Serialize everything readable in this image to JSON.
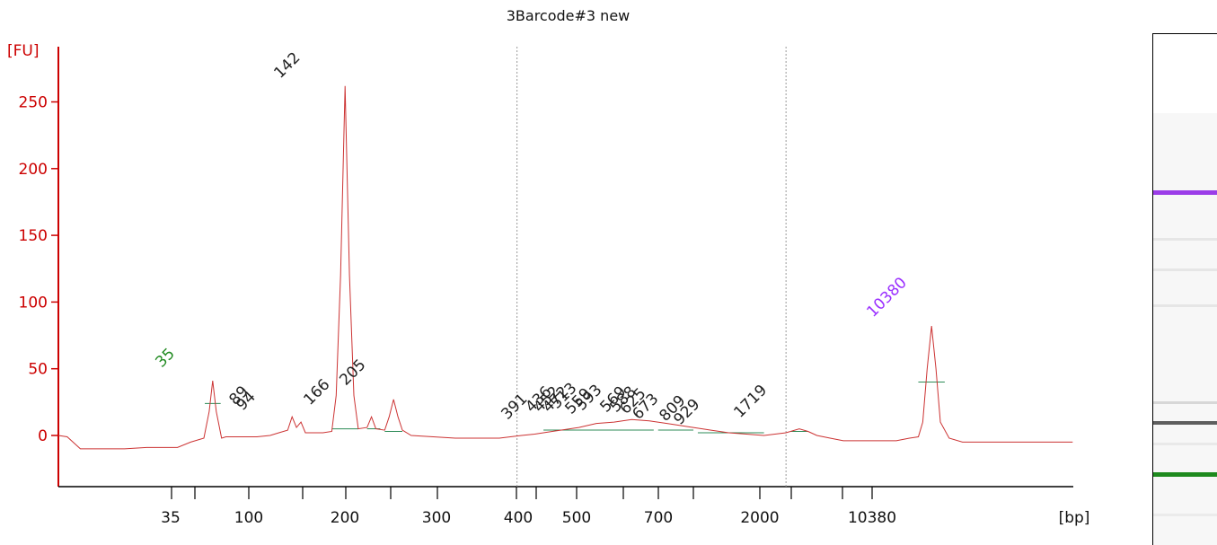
{
  "title": "3Barcode#3 new",
  "chart_data": {
    "type": "line",
    "title": "3Barcode#3 new",
    "ylabel": "[FU]",
    "xlabel": "[bp]",
    "ylim": [
      -30,
      265
    ],
    "yticks": [
      0,
      50,
      100,
      150,
      200,
      250
    ],
    "xtick_labels": [
      "35",
      "100",
      "200",
      "300",
      "400",
      "500",
      "700",
      "2000",
      "10380"
    ],
    "series": [
      {
        "trace": "electropherogram",
        "color": "#cc3333",
        "points": [
          [
            0,
            0
          ],
          [
            2,
            -1
          ],
          [
            5,
            -10
          ],
          [
            15,
            -10
          ],
          [
            20,
            -9
          ],
          [
            27,
            -9
          ],
          [
            30,
            -5
          ],
          [
            33,
            -2
          ],
          [
            34.2,
            18
          ],
          [
            35,
            41
          ],
          [
            35.8,
            18
          ],
          [
            37,
            -2
          ],
          [
            38,
            -1
          ],
          [
            45,
            -1
          ],
          [
            48,
            0
          ],
          [
            50,
            2
          ],
          [
            52,
            4
          ],
          [
            53,
            14
          ],
          [
            54,
            6
          ],
          [
            55,
            10
          ],
          [
            56,
            2
          ],
          [
            60,
            2
          ],
          [
            62,
            3
          ],
          [
            63,
            30
          ],
          [
            64,
            120
          ],
          [
            65,
            262
          ],
          [
            66,
            120
          ],
          [
            67,
            30
          ],
          [
            68,
            5
          ],
          [
            70,
            6
          ],
          [
            71,
            14
          ],
          [
            72,
            5
          ],
          [
            74,
            4
          ],
          [
            75,
            14
          ],
          [
            76,
            27
          ],
          [
            77,
            14
          ],
          [
            78,
            4
          ],
          [
            80,
            0
          ],
          [
            90,
            -2
          ],
          [
            100,
            -2
          ],
          [
            105,
            0
          ],
          [
            108,
            1
          ],
          [
            112,
            3
          ],
          [
            118,
            6
          ],
          [
            122,
            9
          ],
          [
            126,
            10
          ],
          [
            130,
            12
          ],
          [
            134,
            11
          ],
          [
            138,
            9
          ],
          [
            140,
            8
          ],
          [
            144,
            6
          ],
          [
            148,
            4
          ],
          [
            152,
            2
          ],
          [
            156,
            1
          ],
          [
            160,
            0
          ],
          [
            165,
            2
          ],
          [
            168,
            5
          ],
          [
            170,
            3
          ],
          [
            172,
            0
          ],
          [
            175,
            -2
          ],
          [
            178,
            -4
          ],
          [
            185,
            -4
          ],
          [
            190,
            -4
          ],
          [
            193,
            -2
          ],
          [
            195,
            -1
          ],
          [
            196,
            10
          ],
          [
            197,
            50
          ],
          [
            198,
            82
          ],
          [
            199,
            50
          ],
          [
            200,
            10
          ],
          [
            202,
            -2
          ],
          [
            205,
            -5
          ],
          [
            215,
            -5
          ],
          [
            230,
            -5
          ]
        ]
      }
    ],
    "peak_labels": [
      {
        "text": "35",
        "x": 35,
        "y": 41,
        "color": "#228b22"
      },
      {
        "text": "89",
        "x": 71,
        "y": 14,
        "color": "#222222"
      },
      {
        "text": "94",
        "x": 72.6,
        "y": 12,
        "color": "#222222"
      },
      {
        "text": "142",
        "x": 65,
        "y": 262,
        "color": "#222222"
      },
      {
        "text": "166",
        "x": 71,
        "y": 14,
        "color": "#222222"
      },
      {
        "text": "205",
        "x": 76,
        "y": 27,
        "color": "#222222"
      },
      {
        "text": "391",
        "x": 113,
        "y": 3,
        "color": "#222222"
      },
      {
        "text": "436",
        "x": 118,
        "y": 6,
        "color": "#222222"
      },
      {
        "text": "452",
        "x": 120,
        "y": 7,
        "color": "#222222"
      },
      {
        "text": "472",
        "x": 123,
        "y": 9,
        "color": "#222222"
      },
      {
        "text": "513",
        "x": 126,
        "y": 10,
        "color": "#222222"
      },
      {
        "text": "559",
        "x": 129,
        "y": 12,
        "color": "#222222"
      },
      {
        "text": "593",
        "x": 132,
        "y": 11,
        "color": "#222222"
      },
      {
        "text": "569",
        "x": 138,
        "y": 9,
        "color": "#222222"
      },
      {
        "text": "588",
        "x": 140,
        "y": 8,
        "color": "#222222"
      },
      {
        "text": "625",
        "x": 142,
        "y": 7,
        "color": "#222222"
      },
      {
        "text": "673",
        "x": 146,
        "y": 5,
        "color": "#222222"
      },
      {
        "text": "809",
        "x": 151,
        "y": 3,
        "color": "#222222"
      },
      {
        "text": "929",
        "x": 155,
        "y": 1,
        "color": "#222222"
      },
      {
        "text": "1719",
        "x": 168,
        "y": 5,
        "color": "#222222"
      },
      {
        "text": "10380",
        "x": 198,
        "y": 82,
        "color": "#9b30ff"
      }
    ],
    "region_markers": [
      104,
      165
    ],
    "colors": {
      "trace": "#cc3333",
      "axis": "#cc0000",
      "lower_marker": "#228b22",
      "upper_marker": "#9b30ff",
      "baseline": "#2e8b57"
    },
    "grid": false
  },
  "gel": {
    "bands": [
      {
        "at": 0.31,
        "intensity": 1.0,
        "color": "#9b3de8",
        "kind": "upper-marker"
      },
      {
        "at": 0.4,
        "intensity": 0.1,
        "color": "#888888",
        "kind": "band"
      },
      {
        "at": 0.46,
        "intensity": 0.08,
        "color": "#888888",
        "kind": "band"
      },
      {
        "at": 0.53,
        "intensity": 0.12,
        "color": "#888888",
        "kind": "band"
      },
      {
        "at": 0.72,
        "intensity": 0.25,
        "color": "#777777",
        "kind": "band"
      },
      {
        "at": 0.76,
        "intensity": 0.95,
        "color": "#555555",
        "kind": "band"
      },
      {
        "at": 0.8,
        "intensity": 0.15,
        "color": "#999999",
        "kind": "band"
      },
      {
        "at": 0.86,
        "intensity": 1.0,
        "color": "#1e8a1e",
        "kind": "lower-marker"
      },
      {
        "at": 0.94,
        "intensity": 0.1,
        "color": "#aaaaaa",
        "kind": "band"
      }
    ]
  }
}
